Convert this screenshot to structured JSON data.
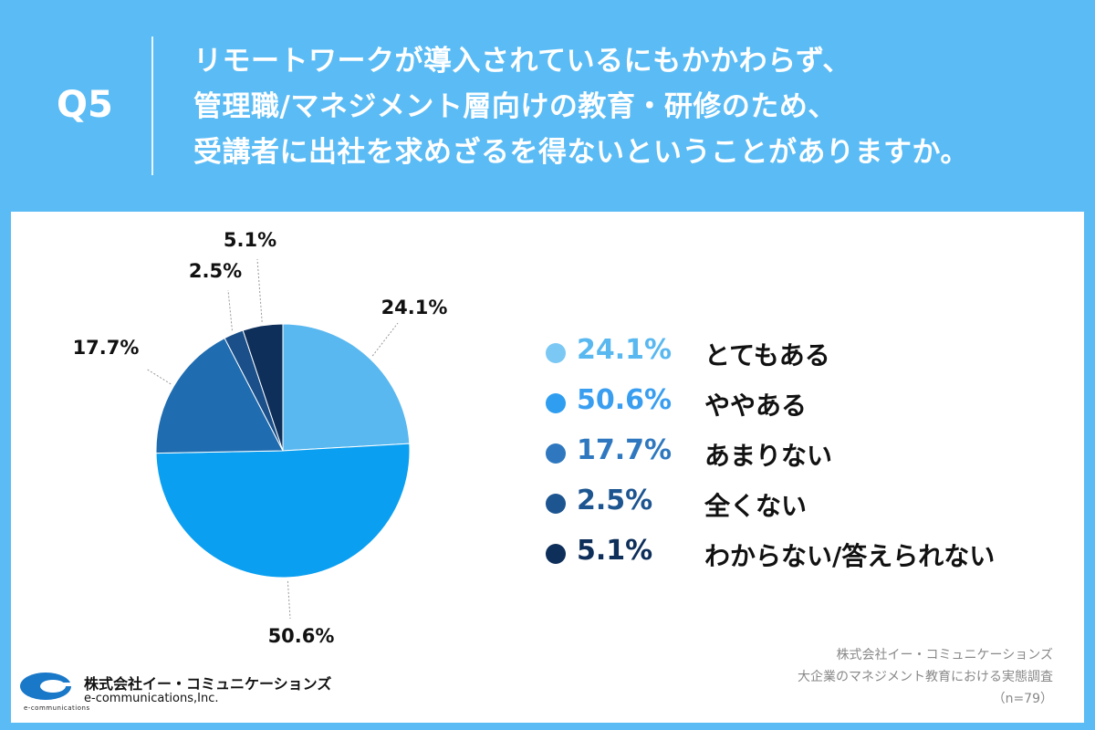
{
  "header": {
    "q_label": "Q5",
    "question_lines": [
      "リモートワークが導入されているにもかかわらず、",
      "管理職/マネジメント層向けの教育・研修のため、",
      "受講者に出社を求めざるを得ないということがありますか。"
    ]
  },
  "chart_data": {
    "type": "pie",
    "categories": [
      "とてもある",
      "ややある",
      "あまりない",
      "全くない",
      "わからない/答えられない"
    ],
    "values": [
      24.1,
      50.6,
      17.7,
      2.5,
      5.1
    ],
    "labels": [
      "24.1%",
      "50.6%",
      "17.7%",
      "2.5%",
      "5.1%"
    ],
    "colors": [
      "#59b8f0",
      "#0a9ff0",
      "#1f6cb0",
      "#1a4f8a",
      "#0e2f5a"
    ],
    "legend_pct_colors": [
      "#59b8f0",
      "#3a9ef0",
      "#2f78bf",
      "#1d5590",
      "#0e2f5a"
    ],
    "legend_dot_colors": [
      "#7cc8f4",
      "#2f9ef0",
      "#2f78bf",
      "#1d5590",
      "#0e2f5a"
    ],
    "start": "top",
    "direction": "clockwise",
    "legend_position": "right"
  },
  "source": {
    "lines": [
      "株式会社イー・コミュニケーションズ",
      "大企業のマネジメント教育における実態調査",
      "（n=79）"
    ]
  },
  "logo": {
    "jp": "株式会社イー・コミュニケーションズ",
    "en": "e-communications,Inc.",
    "mini": "e-communications",
    "color": "#1a78c8"
  }
}
